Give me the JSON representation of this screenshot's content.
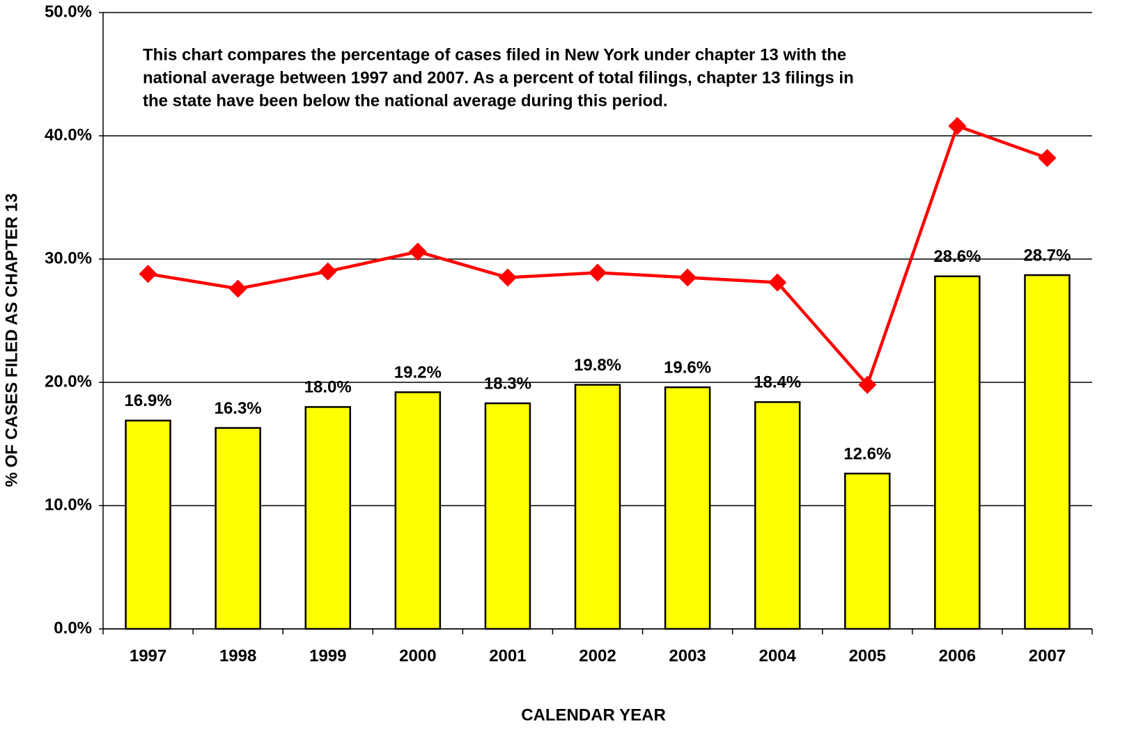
{
  "chart_data": {
    "type": "bar",
    "annotation": [
      "This chart compares the percentage of cases filed in New York under chapter 13 with the",
      "national average between 1997 and 2007.  As a percent of total filings, chapter 13 filings in",
      "the state have been below the national average during this period."
    ],
    "x_label": "CALENDAR YEAR",
    "y_label": "% OF CASES FILED AS CHAPTER 13",
    "categories": [
      "1997",
      "1998",
      "1999",
      "2000",
      "2001",
      "2002",
      "2003",
      "2004",
      "2005",
      "2006",
      "2007"
    ],
    "series": [
      {
        "type": "bar",
        "color": "#ffff00",
        "values": [
          16.9,
          16.3,
          18.0,
          19.2,
          18.3,
          19.8,
          19.6,
          18.4,
          12.6,
          28.6,
          28.7
        ],
        "value_labels": [
          "16.9%",
          "16.3%",
          "18.0%",
          "19.2%",
          "18.3%",
          "19.8%",
          "19.6%",
          "18.4%",
          "12.6%",
          "28.6%",
          "28.7%"
        ]
      },
      {
        "type": "line",
        "color": "#ff0000",
        "values": [
          28.8,
          27.6,
          29.0,
          30.6,
          28.5,
          28.9,
          28.5,
          28.1,
          19.8,
          40.8,
          38.2
        ]
      }
    ],
    "ylim": [
      0,
      50
    ],
    "yticks": [
      {
        "value": 0,
        "label": "0.0%"
      },
      {
        "value": 10,
        "label": "10.0%"
      },
      {
        "value": 20,
        "label": "20.0%"
      },
      {
        "value": 30,
        "label": "30.0%"
      },
      {
        "value": 40,
        "label": "40.0%"
      },
      {
        "value": 50,
        "label": "50.0%"
      }
    ],
    "grid": true
  }
}
